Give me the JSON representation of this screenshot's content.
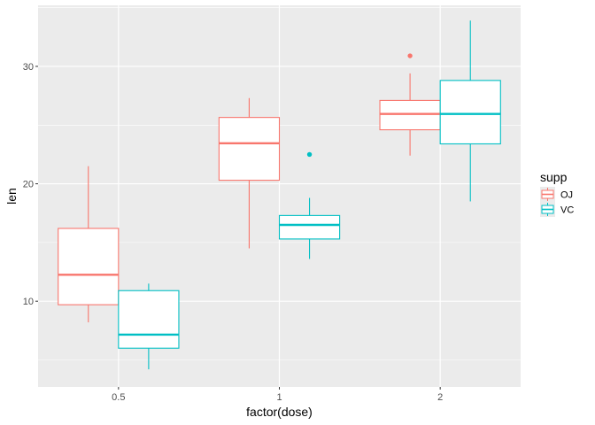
{
  "chart_data": {
    "type": "boxplot",
    "xlabel": "factor(dose)",
    "ylabel": "len",
    "categories": [
      "0.5",
      "1",
      "2"
    ],
    "ylim": [
      2.7,
      35.2
    ],
    "yticks": [
      10,
      20,
      30
    ],
    "grid": true,
    "legend": {
      "title": "supp",
      "placement": "right"
    },
    "series": [
      {
        "name": "OJ",
        "color": "#F8766D",
        "boxes": [
          {
            "category": "0.5",
            "lower_whisker": 8.2,
            "q1": 9.7,
            "median": 12.25,
            "q3": 16.2,
            "upper_whisker": 21.5,
            "outliers": []
          },
          {
            "category": "1",
            "lower_whisker": 14.5,
            "q1": 20.3,
            "median": 23.45,
            "q3": 25.65,
            "upper_whisker": 27.3,
            "outliers": []
          },
          {
            "category": "2",
            "lower_whisker": 22.4,
            "q1": 24.6,
            "median": 25.95,
            "q3": 27.1,
            "upper_whisker": 29.4,
            "outliers": [
              30.9
            ]
          }
        ]
      },
      {
        "name": "VC",
        "color": "#00BFC4",
        "boxes": [
          {
            "category": "0.5",
            "lower_whisker": 4.2,
            "q1": 6.0,
            "median": 7.15,
            "q3": 10.9,
            "upper_whisker": 11.5,
            "outliers": []
          },
          {
            "category": "1",
            "lower_whisker": 13.6,
            "q1": 15.3,
            "median": 16.5,
            "q3": 17.3,
            "upper_whisker": 18.8,
            "outliers": [
              22.5
            ]
          },
          {
            "category": "2",
            "lower_whisker": 18.5,
            "q1": 23.4,
            "median": 25.95,
            "q3": 28.8,
            "upper_whisker": 33.9,
            "outliers": []
          }
        ]
      }
    ]
  }
}
